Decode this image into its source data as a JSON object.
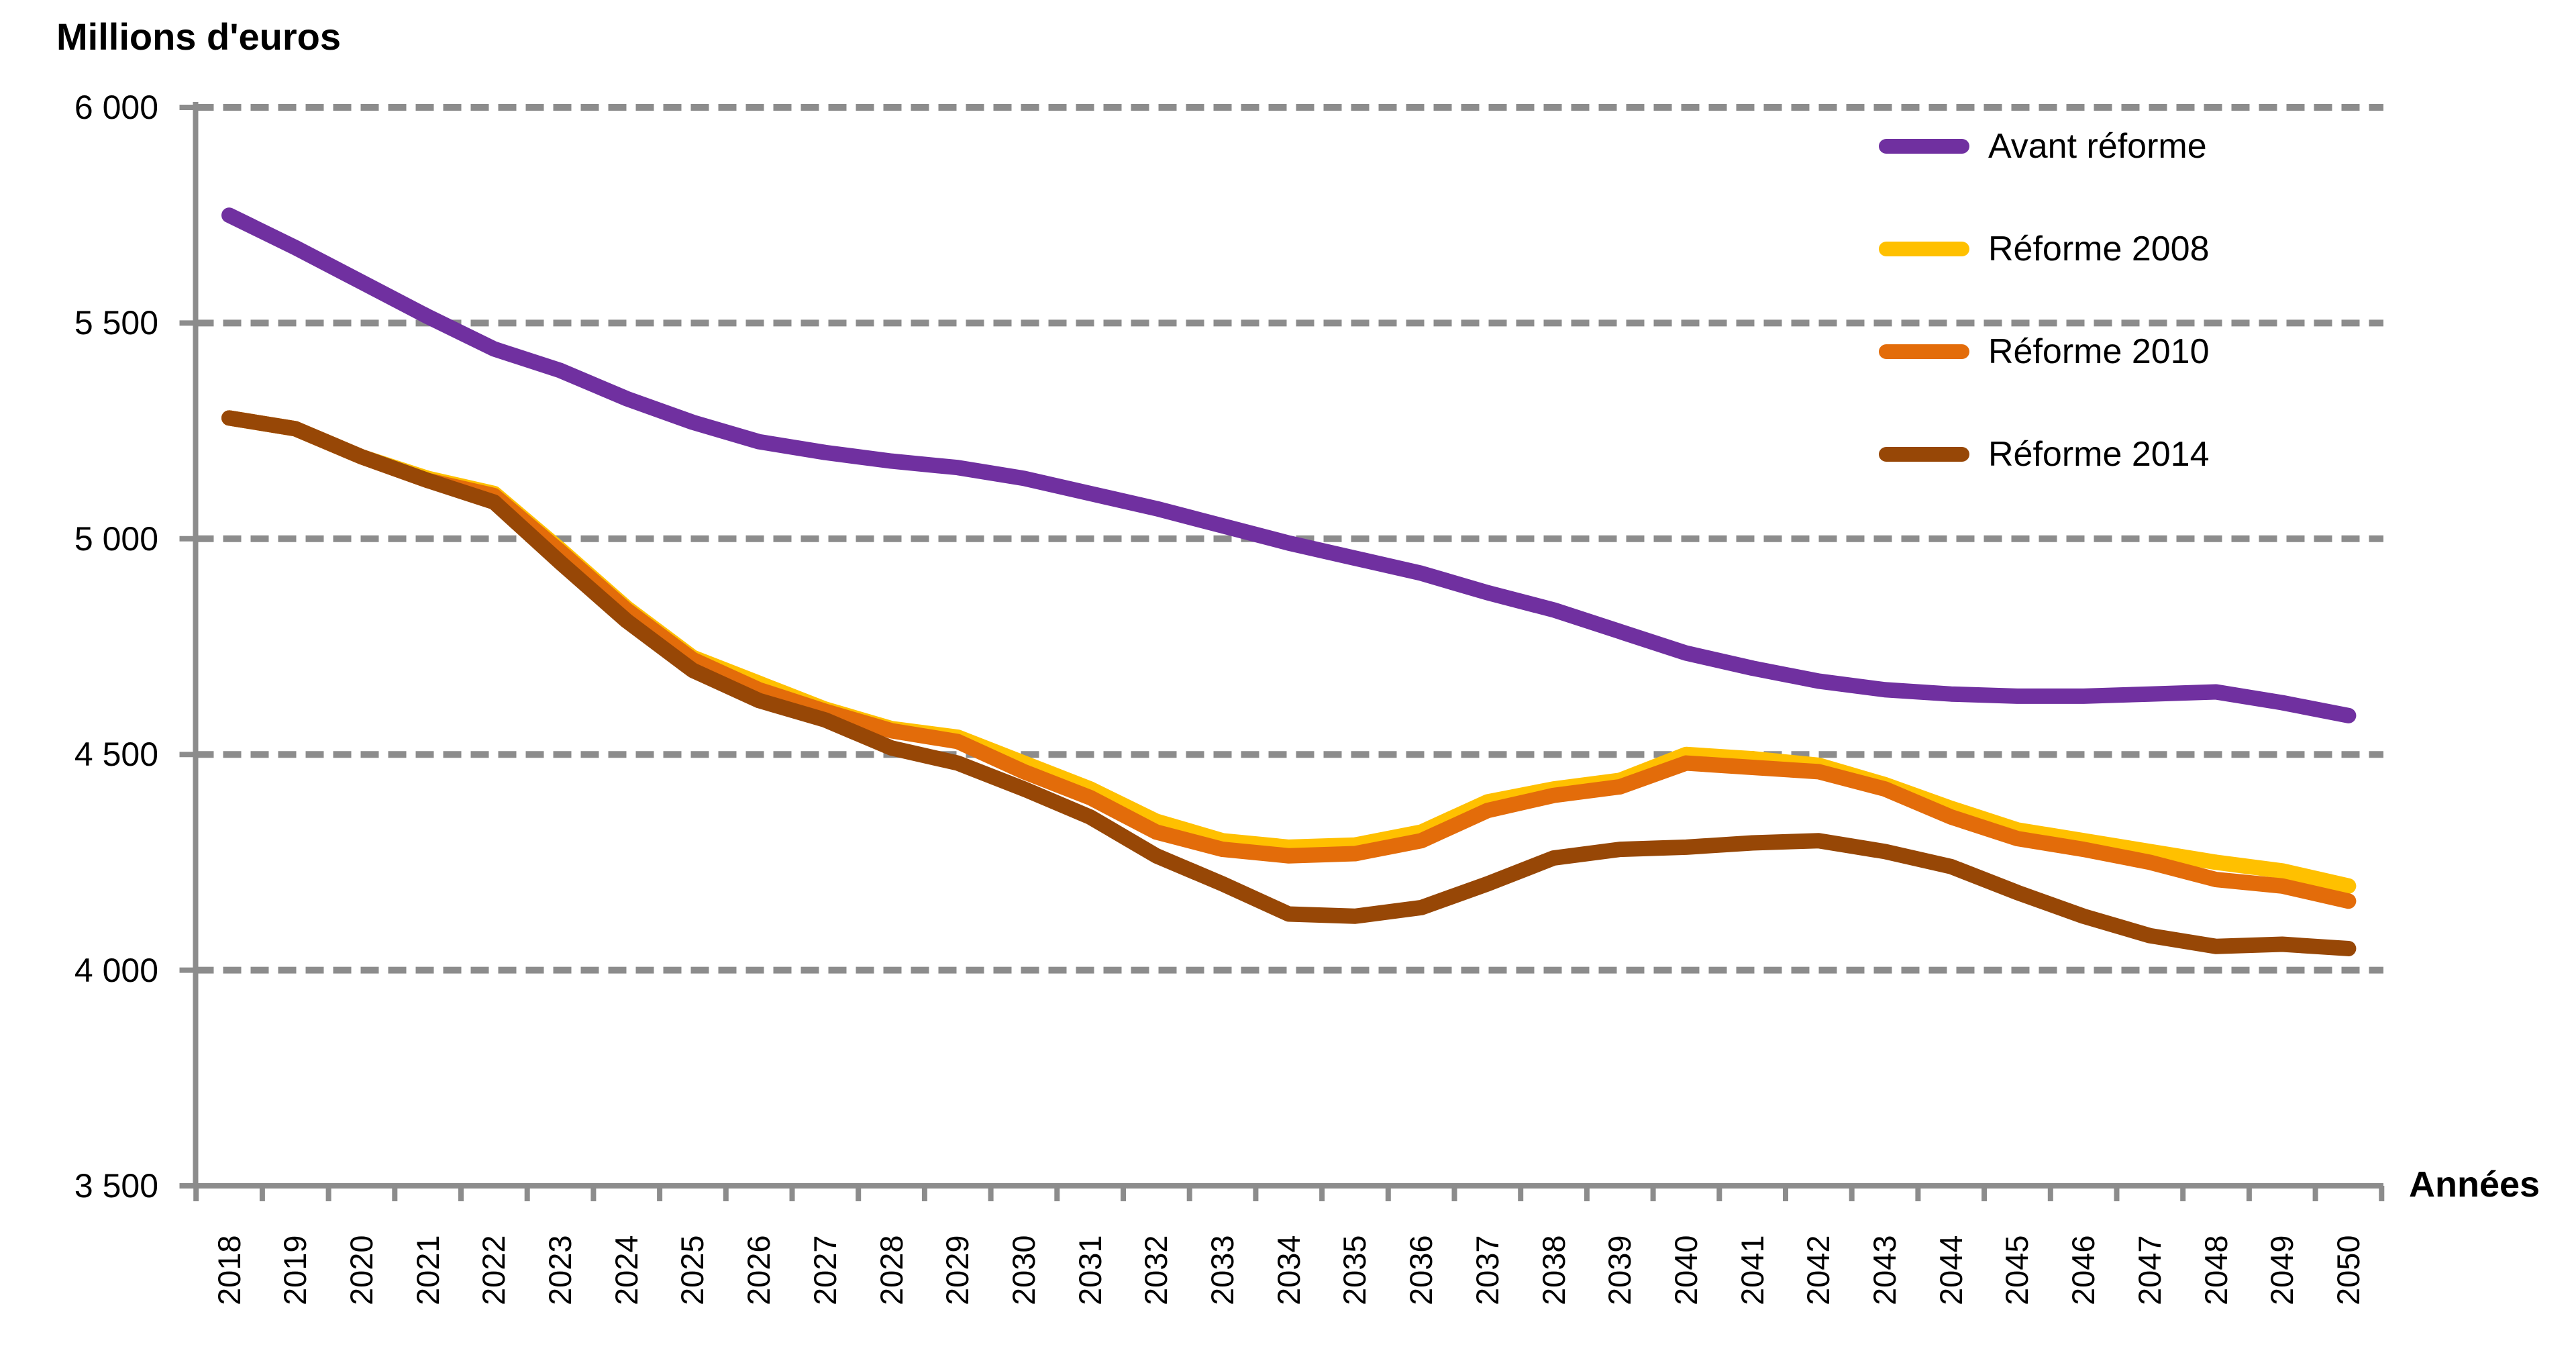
{
  "chart_data": {
    "type": "line",
    "title": "Millions d'euros",
    "xlabel": "Années",
    "ylabel": "",
    "x": [
      2018,
      2019,
      2020,
      2021,
      2022,
      2023,
      2024,
      2025,
      2026,
      2027,
      2028,
      2029,
      2030,
      2031,
      2032,
      2033,
      2034,
      2035,
      2036,
      2037,
      2038,
      2039,
      2040,
      2041,
      2042,
      2043,
      2044,
      2045,
      2046,
      2047,
      2048,
      2049,
      2050
    ],
    "ylim": [
      3500,
      6000
    ],
    "ytick_step": 500,
    "ytick_labels": [
      "3 500",
      "4 000",
      "4 500",
      "5 000",
      "5 500",
      "6 000"
    ],
    "grid": "horizontal-dashed",
    "legend_position": "top-right",
    "background_color": "#FFFFFF",
    "grid_color": "#8C8C8C",
    "axis_color": "#8C8C8C",
    "text_color": "#000000",
    "series": [
      {
        "name": "Avant réforme",
        "color": "#7030A0",
        "values": [
          5750,
          5675,
          5595,
          5515,
          5440,
          5390,
          5325,
          5270,
          5225,
          5200,
          5180,
          5165,
          5140,
          5105,
          5070,
          5030,
          4990,
          4955,
          4920,
          4875,
          4835,
          4785,
          4735,
          4700,
          4670,
          4650,
          4640,
          4635,
          4635,
          4640,
          4645,
          4620,
          4590
        ]
      },
      {
        "name": "Réforme 2008",
        "color": "#FFC000",
        "values": [
          5280,
          5255,
          5190,
          5140,
          5105,
          4975,
          4840,
          4725,
          4665,
          4605,
          4560,
          4540,
          4480,
          4420,
          4345,
          4300,
          4285,
          4290,
          4320,
          4390,
          4420,
          4440,
          4500,
          4490,
          4475,
          4430,
          4375,
          4325,
          4300,
          4275,
          4250,
          4230,
          4195
        ]
      },
      {
        "name": "Réforme 2010",
        "color": "#E36C0A",
        "values": [
          5280,
          5255,
          5190,
          5135,
          5100,
          4970,
          4835,
          4720,
          4650,
          4600,
          4555,
          4530,
          4460,
          4400,
          4320,
          4280,
          4265,
          4270,
          4300,
          4370,
          4405,
          4425,
          4480,
          4470,
          4460,
          4420,
          4355,
          4305,
          4280,
          4250,
          4210,
          4195,
          4160
        ]
      },
      {
        "name": "Réforme 2014",
        "color": "#974706",
        "values": [
          5280,
          5255,
          5190,
          5135,
          5085,
          4945,
          4810,
          4695,
          4625,
          4580,
          4515,
          4480,
          4420,
          4355,
          4265,
          4200,
          4130,
          4125,
          4145,
          4200,
          4260,
          4280,
          4285,
          4295,
          4300,
          4275,
          4240,
          4180,
          4125,
          4080,
          4055,
          4060,
          4050
        ]
      }
    ]
  }
}
